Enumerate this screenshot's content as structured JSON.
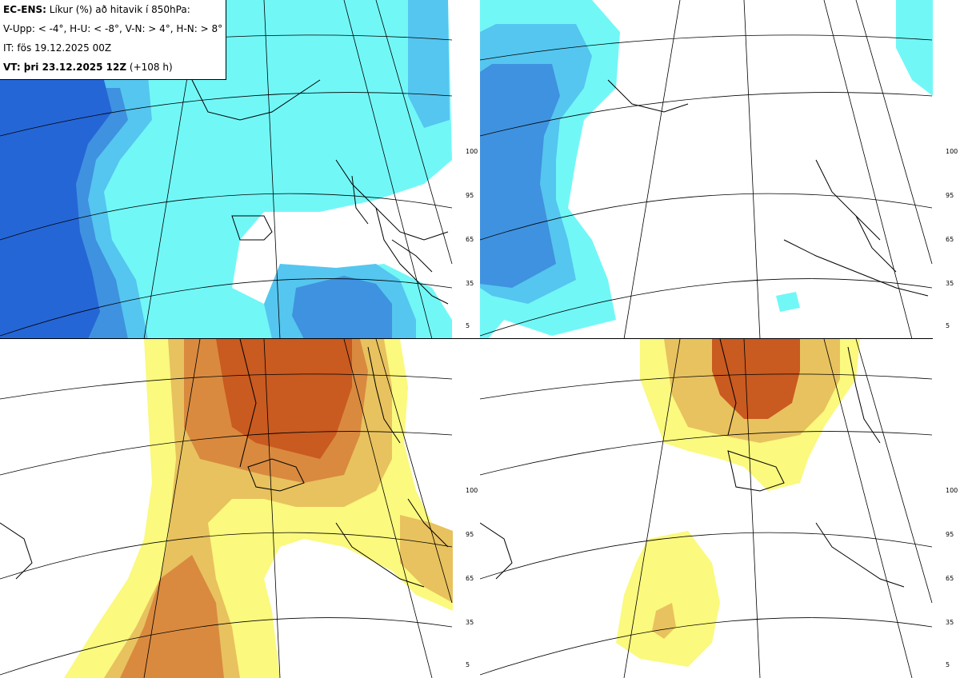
{
  "info": {
    "line1_bold": "EC-ENS:",
    "line1_rest": " Líkur (%) að hitavik í 850hPa:",
    "line2": "V-Upp: < -4°, H-U: < -8°, V-N: > 4°, H-N: > 8°",
    "line3": "IT: fös 19.12.2025 00Z",
    "line4_bold": "VT: þri 23.12.2025 12Z",
    "line4_rest": " (+108 h)"
  },
  "colorbar_labels": {
    "top": [
      "100",
      "95",
      "65",
      "35",
      "5"
    ],
    "bottom": [
      "100",
      "95",
      "65",
      "35",
      "5"
    ]
  },
  "colors": {
    "cold": [
      "#72f7f7",
      "#55c6ef",
      "#3f92df",
      "#2566d6"
    ],
    "warm": [
      "#fbf97e",
      "#e8c25e",
      "#d98a3f",
      "#c95a20"
    ],
    "coast": "#000000",
    "grid": "#000000"
  }
}
